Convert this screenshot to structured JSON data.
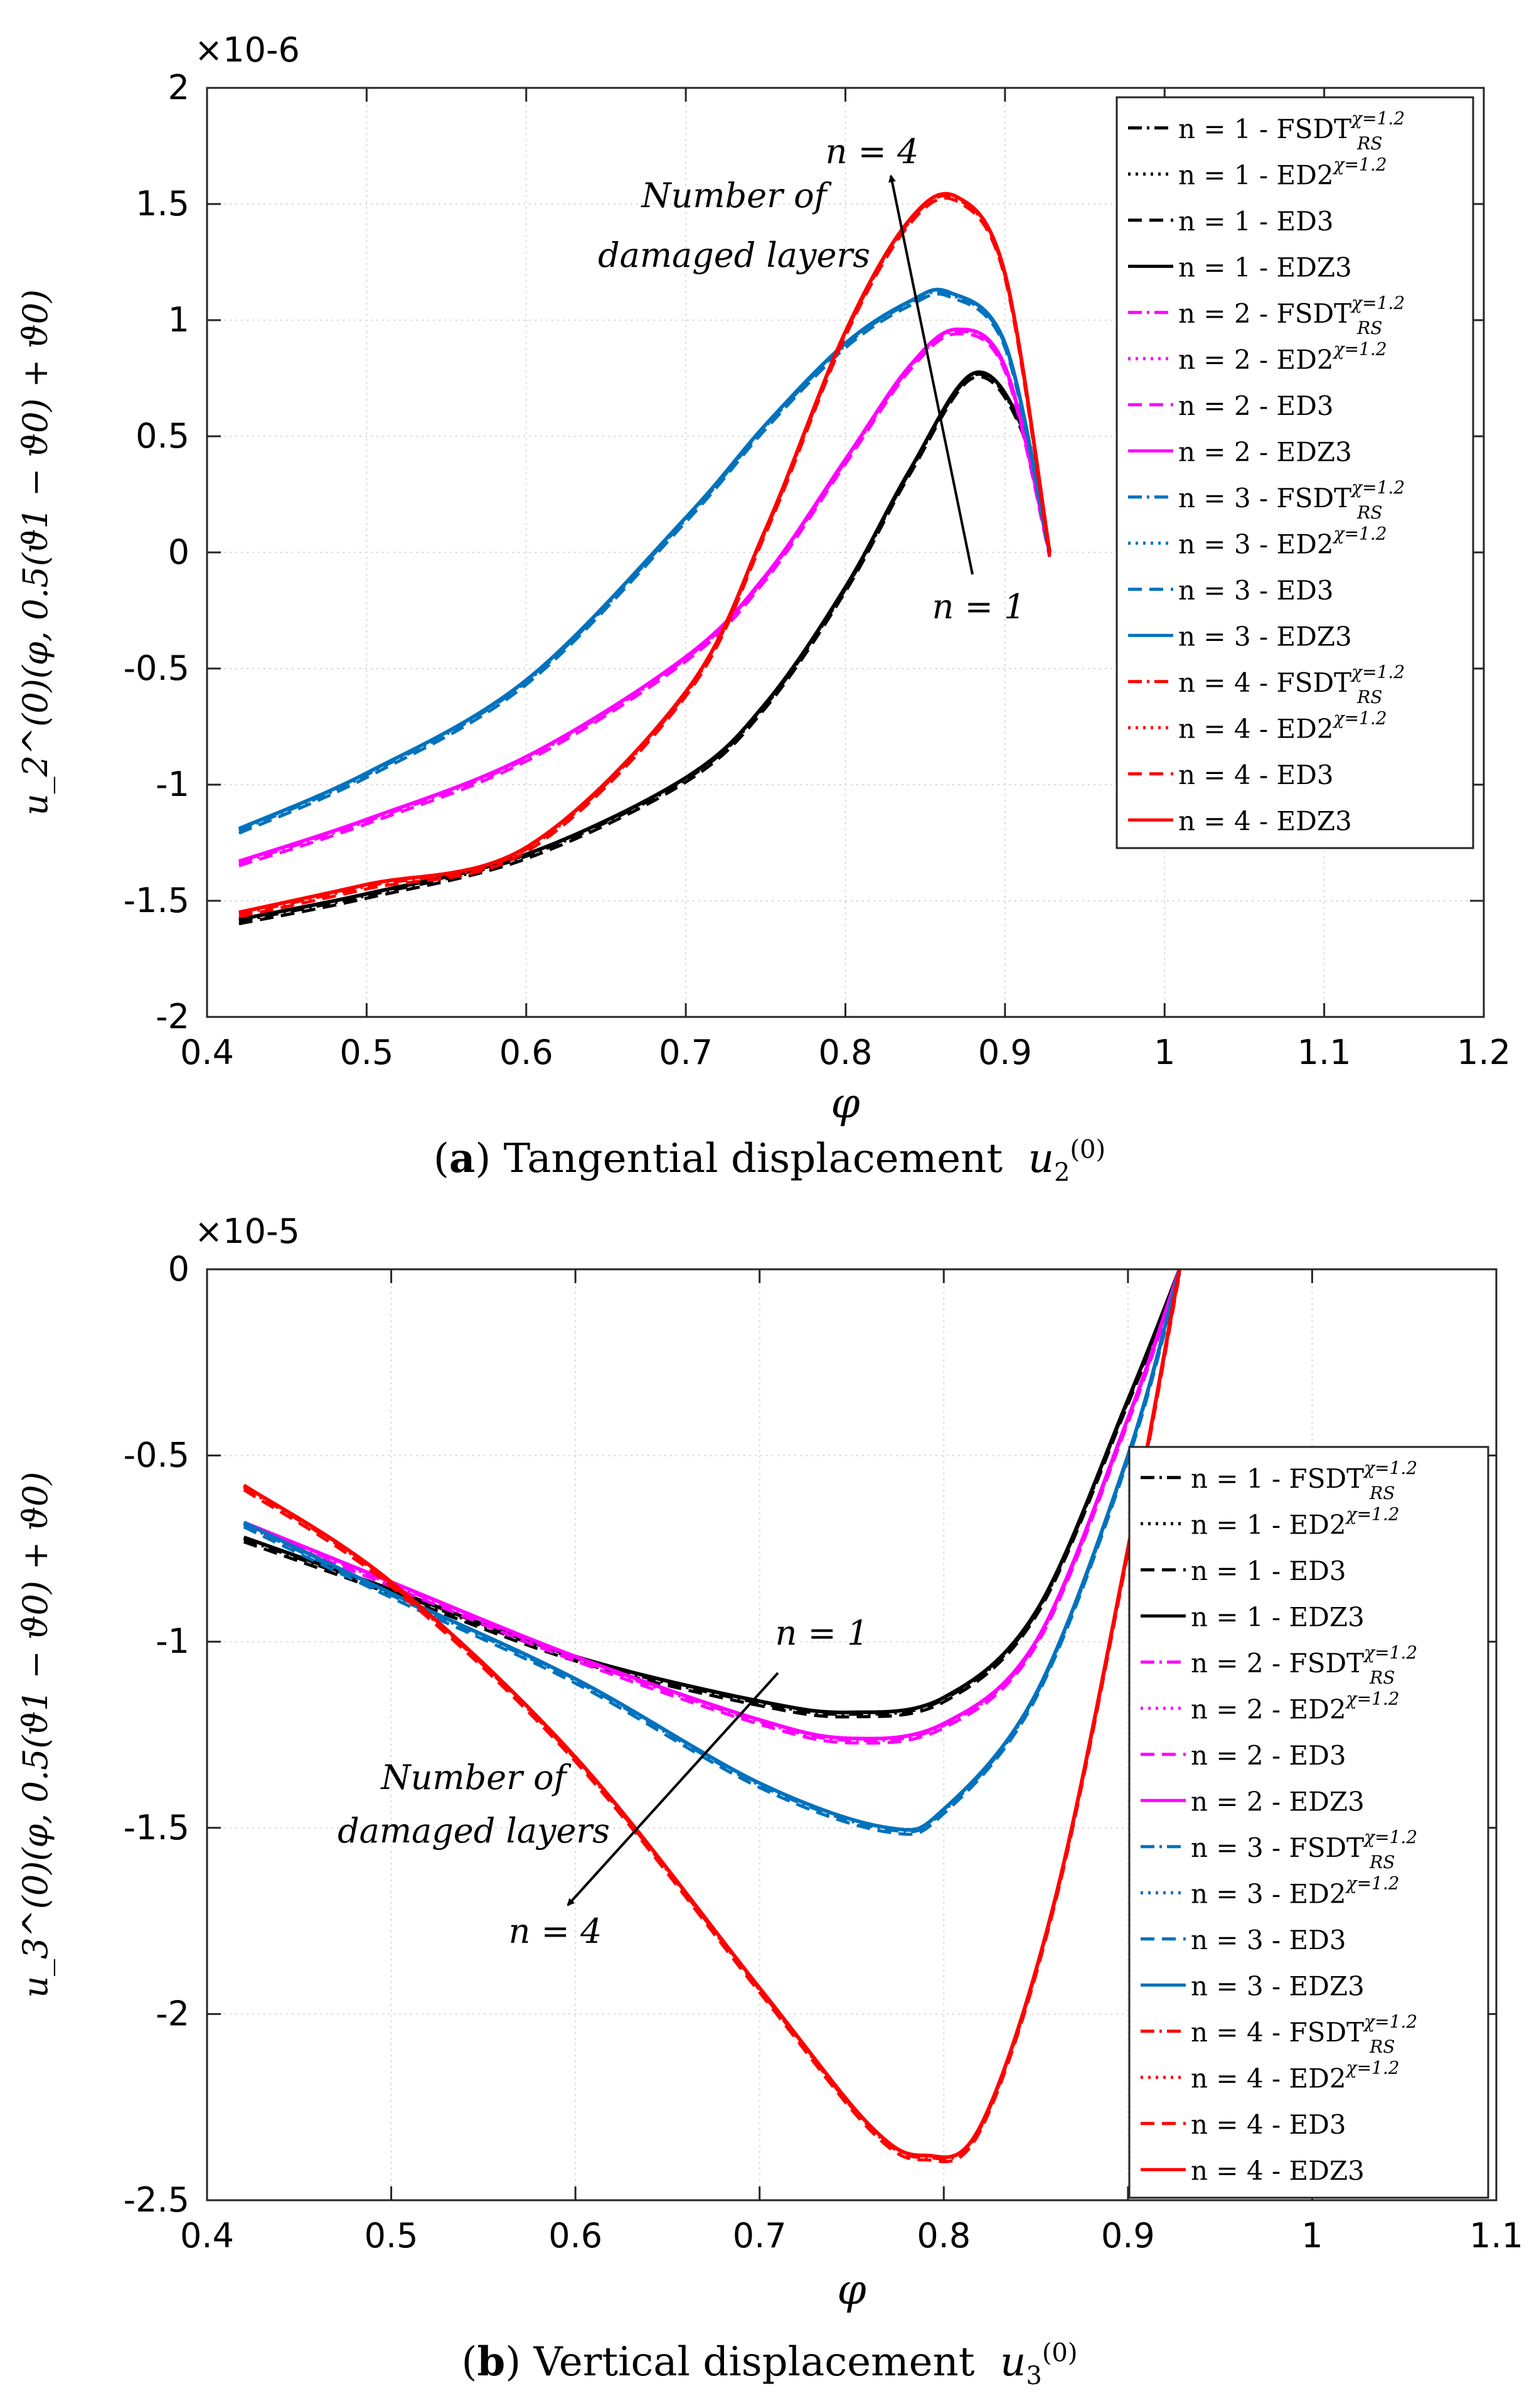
{
  "chart_data": [
    {
      "type": "line",
      "panel": "a",
      "caption_letter": "a",
      "caption_text": "Tangential displacement",
      "caption_symbol": "u",
      "caption_sub": "2",
      "caption_sup": "(0)",
      "ylabel": "u_2^(0)(φ, 0.5(ϑ1 − ϑ0) + ϑ0)",
      "xlabel": "φ",
      "xlim": [
        0.4,
        1.2
      ],
      "ylim": [
        -2,
        2
      ],
      "xticks": [
        0.4,
        0.5,
        0.6,
        0.7,
        0.8,
        0.9,
        1,
        1.1,
        1.2
      ],
      "xtick_labels": [
        "0.4",
        "0.5",
        "0.6",
        "0.7",
        "0.8",
        "0.9",
        "1",
        "1.1",
        "1.2"
      ],
      "yticks": [
        -2,
        -1.5,
        -1,
        -0.5,
        0,
        0.5,
        1,
        1.5,
        2
      ],
      "ytick_labels": [
        "-2",
        "-1.5",
        "-1",
        "-0.5",
        "0",
        "0.5",
        "1",
        "1.5",
        "2"
      ],
      "exponent_label": "×10-6",
      "grid": true,
      "legend_position": "top-right",
      "annotation_main": [
        "Number of",
        "damaged layers"
      ],
      "annotation_start": "n = 1",
      "annotation_end": "n = 4",
      "series": [
        {
          "name": "n = 1",
          "color": "#000000",
          "x": [
            0.42,
            0.5,
            0.6,
            0.7,
            0.75,
            0.8,
            0.84,
            0.88,
            0.91,
            0.928
          ],
          "y": [
            -1.58,
            -1.47,
            -1.3,
            -0.97,
            -0.65,
            -0.15,
            0.35,
            0.77,
            0.55,
            0.0
          ]
        },
        {
          "name": "n = 2",
          "color": "#ff00ff",
          "x": [
            0.42,
            0.5,
            0.6,
            0.7,
            0.75,
            0.8,
            0.84,
            0.87,
            0.9,
            0.928
          ],
          "y": [
            -1.33,
            -1.15,
            -0.88,
            -0.45,
            -0.1,
            0.4,
            0.8,
            0.96,
            0.8,
            0.0
          ]
        },
        {
          "name": "n = 3",
          "color": "#0072bd",
          "x": [
            0.42,
            0.5,
            0.6,
            0.7,
            0.75,
            0.8,
            0.84,
            0.865,
            0.9,
            0.928
          ],
          "y": [
            -1.19,
            -0.95,
            -0.55,
            0.15,
            0.55,
            0.9,
            1.08,
            1.12,
            0.9,
            0.0
          ]
        },
        {
          "name": "n = 4",
          "color": "#ff0000",
          "x": [
            0.42,
            0.5,
            0.6,
            0.7,
            0.75,
            0.8,
            0.84,
            0.87,
            0.9,
            0.928
          ],
          "y": [
            -1.55,
            -1.43,
            -1.27,
            -0.6,
            0.1,
            0.95,
            1.43,
            1.53,
            1.2,
            0.0
          ]
        }
      ],
      "legend": [
        {
          "label": "n = 1 - FSDT",
          "sup": "χ=1.2",
          "sub": "RS",
          "color": "#000000",
          "style": "dashdot"
        },
        {
          "label": "n = 1 - ED2",
          "sup": "χ=1.2",
          "sub": "",
          "color": "#000000",
          "style": "dotted"
        },
        {
          "label": "n = 1 - ED3",
          "sup": "",
          "sub": "",
          "color": "#000000",
          "style": "dashed"
        },
        {
          "label": "n = 1 - EDZ3",
          "sup": "",
          "sub": "",
          "color": "#000000",
          "style": "solid"
        },
        {
          "label": "n = 2 - FSDT",
          "sup": "χ=1.2",
          "sub": "RS",
          "color": "#ff00ff",
          "style": "dashdot"
        },
        {
          "label": "n = 2 - ED2",
          "sup": "χ=1.2",
          "sub": "",
          "color": "#ff00ff",
          "style": "dotted"
        },
        {
          "label": "n = 2 - ED3",
          "sup": "",
          "sub": "",
          "color": "#ff00ff",
          "style": "dashed"
        },
        {
          "label": "n = 2 - EDZ3",
          "sup": "",
          "sub": "",
          "color": "#ff00ff",
          "style": "solid"
        },
        {
          "label": "n = 3 - FSDT",
          "sup": "χ=1.2",
          "sub": "RS",
          "color": "#0072bd",
          "style": "dashdot"
        },
        {
          "label": "n = 3 - ED2",
          "sup": "χ=1.2",
          "sub": "",
          "color": "#0072bd",
          "style": "dotted"
        },
        {
          "label": "n = 3 - ED3",
          "sup": "",
          "sub": "",
          "color": "#0072bd",
          "style": "dashed"
        },
        {
          "label": "n = 3 - EDZ3",
          "sup": "",
          "sub": "",
          "color": "#0072bd",
          "style": "solid"
        },
        {
          "label": "n = 4 - FSDT",
          "sup": "χ=1.2",
          "sub": "RS",
          "color": "#ff0000",
          "style": "dashdot"
        },
        {
          "label": "n = 4 - ED2",
          "sup": "χ=1.2",
          "sub": "",
          "color": "#ff0000",
          "style": "dotted"
        },
        {
          "label": "n = 4 - ED3",
          "sup": "",
          "sub": "",
          "color": "#ff0000",
          "style": "dashed"
        },
        {
          "label": "n = 4 - EDZ3",
          "sup": "",
          "sub": "",
          "color": "#ff0000",
          "style": "solid"
        }
      ]
    },
    {
      "type": "line",
      "panel": "b",
      "caption_letter": "b",
      "caption_text": "Vertical displacement",
      "caption_symbol": "u",
      "caption_sub": "3",
      "caption_sup": "(0)",
      "ylabel": "u_3^(0)(φ, 0.5(ϑ1 − ϑ0) + ϑ0)",
      "xlabel": "φ",
      "xlim": [
        0.4,
        1.1
      ],
      "ylim": [
        -2.5,
        0
      ],
      "xticks": [
        0.4,
        0.5,
        0.6,
        0.7,
        0.8,
        0.9,
        1,
        1.1
      ],
      "xtick_labels": [
        "0.4",
        "0.5",
        "0.6",
        "0.7",
        "0.8",
        "0.9",
        "1",
        "1.1"
      ],
      "yticks": [
        -2.5,
        -2,
        -1.5,
        -1,
        -0.5,
        0
      ],
      "ytick_labels": [
        "-2.5",
        "-2",
        "-1.5",
        "-1",
        "-0.5",
        "0"
      ],
      "exponent_label": "×10-5",
      "grid": true,
      "legend_position": "right",
      "annotation_main": [
        "Number of",
        "damaged layers"
      ],
      "annotation_start": "n = 1",
      "annotation_end": "n = 4",
      "series": [
        {
          "name": "n = 1",
          "color": "#000000",
          "x": [
            0.42,
            0.5,
            0.6,
            0.7,
            0.75,
            0.8,
            0.85,
            0.9,
            0.928
          ],
          "y": [
            -0.72,
            -0.86,
            -1.04,
            -1.16,
            -1.19,
            -1.15,
            -0.92,
            -0.35,
            0.0
          ]
        },
        {
          "name": "n = 2",
          "color": "#ff00ff",
          "x": [
            0.42,
            0.5,
            0.6,
            0.7,
            0.75,
            0.8,
            0.85,
            0.9,
            0.928
          ],
          "y": [
            -0.68,
            -0.84,
            -1.04,
            -1.21,
            -1.26,
            -1.22,
            -1.0,
            -0.4,
            0.0
          ]
        },
        {
          "name": "n = 3",
          "color": "#0072bd",
          "x": [
            0.42,
            0.5,
            0.6,
            0.7,
            0.77,
            0.8,
            0.85,
            0.9,
            0.928
          ],
          "y": [
            -0.68,
            -0.87,
            -1.1,
            -1.38,
            -1.5,
            -1.45,
            -1.14,
            -0.5,
            0.0
          ]
        },
        {
          "name": "n = 4",
          "color": "#ff0000",
          "x": [
            0.42,
            0.5,
            0.6,
            0.7,
            0.76,
            0.79,
            0.82,
            0.86,
            0.9,
            0.928
          ],
          "y": [
            -0.58,
            -0.84,
            -1.31,
            -1.93,
            -2.3,
            -2.38,
            -2.3,
            -1.7,
            -0.75,
            0.0
          ]
        }
      ],
      "legend": [
        {
          "label": "n = 1 - FSDT",
          "sup": "χ=1.2",
          "sub": "RS",
          "color": "#000000",
          "style": "dashdot"
        },
        {
          "label": "n = 1 - ED2",
          "sup": "χ=1.2",
          "sub": "",
          "color": "#000000",
          "style": "dotted"
        },
        {
          "label": "n = 1 - ED3",
          "sup": "",
          "sub": "",
          "color": "#000000",
          "style": "dashed"
        },
        {
          "label": "n = 1 - EDZ3",
          "sup": "",
          "sub": "",
          "color": "#000000",
          "style": "solid"
        },
        {
          "label": "n = 2 - FSDT",
          "sup": "χ=1.2",
          "sub": "RS",
          "color": "#ff00ff",
          "style": "dashdot"
        },
        {
          "label": "n = 2 - ED2",
          "sup": "χ=1.2",
          "sub": "",
          "color": "#ff00ff",
          "style": "dotted"
        },
        {
          "label": "n = 2 - ED3",
          "sup": "",
          "sub": "",
          "color": "#ff00ff",
          "style": "dashed"
        },
        {
          "label": "n = 2 - EDZ3",
          "sup": "",
          "sub": "",
          "color": "#ff00ff",
          "style": "solid"
        },
        {
          "label": "n = 3 - FSDT",
          "sup": "χ=1.2",
          "sub": "RS",
          "color": "#0072bd",
          "style": "dashdot"
        },
        {
          "label": "n = 3 - ED2",
          "sup": "χ=1.2",
          "sub": "",
          "color": "#0072bd",
          "style": "dotted"
        },
        {
          "label": "n = 3 - ED3",
          "sup": "",
          "sub": "",
          "color": "#0072bd",
          "style": "dashed"
        },
        {
          "label": "n = 3 - EDZ3",
          "sup": "",
          "sub": "",
          "color": "#0072bd",
          "style": "solid"
        },
        {
          "label": "n = 4 - FSDT",
          "sup": "χ=1.2",
          "sub": "RS",
          "color": "#ff0000",
          "style": "dashdot"
        },
        {
          "label": "n = 4 - ED2",
          "sup": "χ=1.2",
          "sub": "",
          "color": "#ff0000",
          "style": "dotted"
        },
        {
          "label": "n = 4 - ED3",
          "sup": "",
          "sub": "",
          "color": "#ff0000",
          "style": "dashed"
        },
        {
          "label": "n = 4 - EDZ3",
          "sup": "",
          "sub": "",
          "color": "#ff0000",
          "style": "solid"
        }
      ]
    }
  ]
}
